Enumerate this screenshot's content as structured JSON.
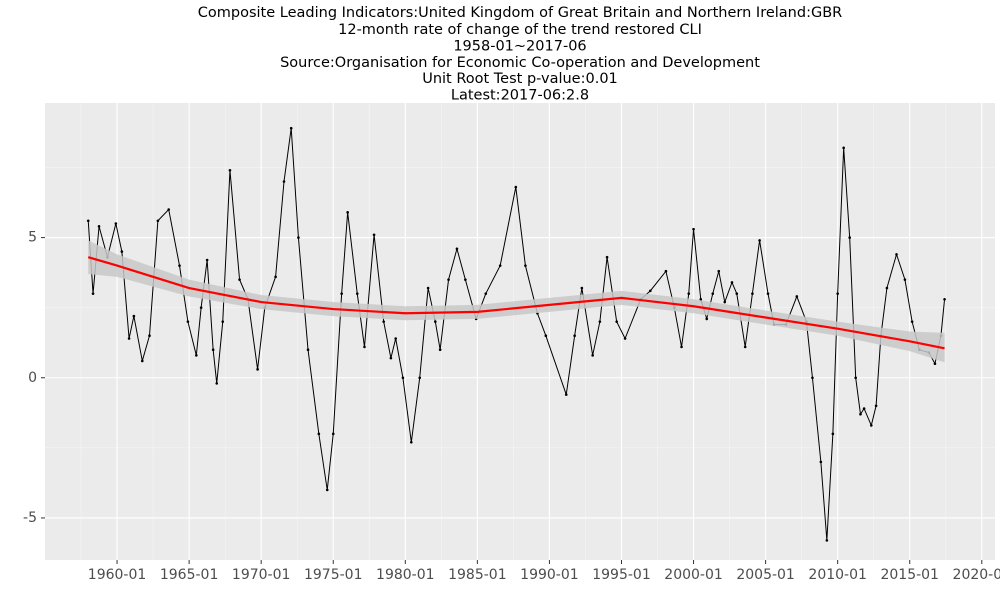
{
  "chart_data": {
    "type": "line",
    "title": "Composite Leading Indicators:United Kingdom of Great Britain and Northern Ireland:GBR",
    "subtitle": [
      "12-month rate of change of the trend restored CLI",
      "1958-01~2017-06",
      "Source:Organisation for Economic Co-operation and Development",
      "Unit Root Test p-value:0.01",
      "Latest:2017-06:2.8"
    ],
    "xlim": [
      "1955-01",
      "2020-12"
    ],
    "xticks": [
      "1960-01",
      "1965-01",
      "1970-01",
      "1975-01",
      "1980-01",
      "1985-01",
      "1990-01",
      "1995-01",
      "2000-01",
      "2005-01",
      "2010-01",
      "2015-01",
      "2020-01"
    ],
    "ylim": [
      -6.5,
      9.8
    ],
    "yticks": [
      -5,
      0,
      5
    ],
    "grid": true,
    "series": [
      {
        "color": "#000000",
        "x": [
          "1958-01",
          "1958-05",
          "1958-10",
          "1959-05",
          "1959-12",
          "1960-05",
          "1960-11",
          "1961-03",
          "1961-10",
          "1962-04",
          "1962-11",
          "1963-08",
          "1964-05",
          "1964-12",
          "1965-07",
          "1965-11",
          "1966-04",
          "1966-09",
          "1966-12",
          "1967-05",
          "1967-11",
          "1968-07",
          "1969-02",
          "1969-10",
          "1970-04",
          "1971-01",
          "1971-08",
          "1972-02",
          "1972-08",
          "1973-04",
          "1974-01",
          "1974-08",
          "1975-01",
          "1975-08",
          "1976-01",
          "1976-09",
          "1977-03",
          "1977-11",
          "1978-07",
          "1979-01",
          "1979-05",
          "1979-11",
          "1980-06",
          "1981-01",
          "1981-08",
          "1982-02",
          "1982-06",
          "1983-01",
          "1983-08",
          "1984-03",
          "1984-12",
          "1985-08",
          "1986-08",
          "1987-09",
          "1988-05",
          "1989-03",
          "1989-10",
          "1991-03",
          "1991-10",
          "1992-04",
          "1993-01",
          "1993-07",
          "1994-01",
          "1994-09",
          "1995-04",
          "1996-05",
          "1997-01",
          "1998-02",
          "1998-09",
          "1999-03",
          "1999-09",
          "2000-01",
          "2000-07",
          "2000-12",
          "2001-05",
          "2001-10",
          "2002-03",
          "2002-09",
          "2003-01",
          "2003-08",
          "2004-02",
          "2004-08",
          "2005-03",
          "2005-08",
          "2006-06",
          "2007-03",
          "2007-11",
          "2008-04",
          "2008-11",
          "2009-04",
          "2009-09",
          "2010-01",
          "2010-06",
          "2010-11",
          "2011-04",
          "2011-08",
          "2011-11",
          "2012-05",
          "2012-09",
          "2013-01",
          "2013-06",
          "2014-02",
          "2014-09",
          "2015-03",
          "2015-09",
          "2016-05",
          "2016-10",
          "2017-03",
          "2017-06"
        ],
        "values": [
          5.6,
          3.0,
          5.4,
          4.3,
          5.5,
          4.5,
          1.4,
          2.2,
          0.6,
          1.5,
          5.6,
          6.0,
          4.0,
          2.0,
          0.8,
          2.5,
          4.2,
          1.0,
          -0.2,
          2.0,
          7.4,
          3.5,
          2.8,
          0.3,
          2.5,
          3.6,
          7.0,
          8.9,
          5.0,
          1.0,
          -2.0,
          -4.0,
          -2.0,
          3.0,
          5.9,
          3.0,
          1.1,
          5.1,
          2.0,
          0.7,
          1.4,
          0.0,
          -2.3,
          0.0,
          3.2,
          2.0,
          1.0,
          3.5,
          4.6,
          3.5,
          2.1,
          3.0,
          4.0,
          6.8,
          4.0,
          2.3,
          1.5,
          -0.6,
          1.5,
          3.2,
          0.8,
          2.0,
          4.3,
          2.0,
          1.4,
          2.8,
          3.1,
          3.8,
          2.5,
          1.1,
          3.0,
          5.3,
          2.8,
          2.1,
          3.0,
          3.8,
          2.7,
          3.4,
          3.0,
          1.1,
          3.0,
          4.9,
          3.0,
          1.9,
          1.9,
          2.9,
          2.0,
          0.0,
          -3.0,
          -5.8,
          -2.0,
          3.0,
          8.2,
          5.0,
          0.0,
          -1.3,
          -1.1,
          -1.7,
          -1.0,
          1.5,
          3.2,
          4.4,
          3.5,
          2.0,
          1.0,
          0.9,
          0.5,
          1.5,
          2.8
        ]
      },
      {
        "color": "#ff0000",
        "band_color": "#c8c8c8",
        "x": [
          "1958-01",
          "1960-01",
          "1965-01",
          "1970-01",
          "1975-01",
          "1980-01",
          "1985-01",
          "1990-01",
          "1995-01",
          "2000-01",
          "2005-01",
          "2010-01",
          "2015-01",
          "2017-06"
        ],
        "values": [
          4.3,
          4.0,
          3.2,
          2.7,
          2.45,
          2.3,
          2.35,
          2.6,
          2.85,
          2.55,
          2.15,
          1.75,
          1.3,
          1.05
        ],
        "lower": [
          3.7,
          3.6,
          2.9,
          2.45,
          2.2,
          2.05,
          2.1,
          2.35,
          2.6,
          2.3,
          1.9,
          1.5,
          0.95,
          0.55
        ],
        "upper": [
          4.9,
          4.4,
          3.5,
          2.95,
          2.7,
          2.55,
          2.6,
          2.85,
          3.1,
          2.8,
          2.4,
          2.0,
          1.65,
          1.6
        ]
      }
    ]
  }
}
